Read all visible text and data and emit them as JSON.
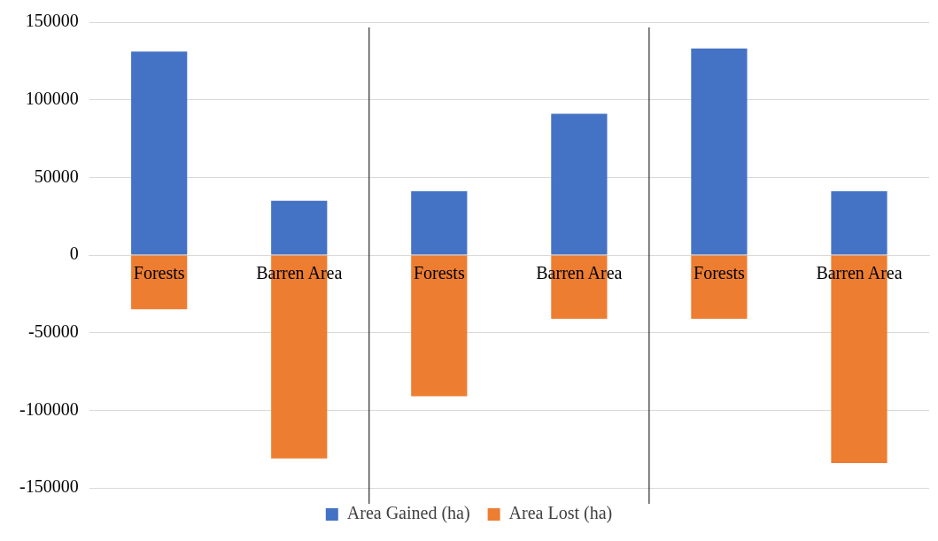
{
  "chart_data": {
    "type": "bar",
    "stacked": true,
    "categories": [
      "Forests",
      "Barren Area",
      "Forests",
      "Barren Area",
      "Forests",
      "Barren Area"
    ],
    "series": [
      {
        "name": "Area Gained (ha)",
        "color": "#4472c4",
        "values": [
          131000,
          35000,
          41000,
          91000,
          133000,
          41000
        ]
      },
      {
        "name": "Area Lost (ha)",
        "color": "#ed7d31",
        "values": [
          -35000,
          -131000,
          -91000,
          -41000,
          -41000,
          -134000
        ]
      }
    ],
    "ylim": [
      -150000,
      150000
    ],
    "yticks": [
      -150000,
      -100000,
      -50000,
      0,
      50000,
      100000,
      150000
    ],
    "grid": "y",
    "legend": "bottom"
  }
}
